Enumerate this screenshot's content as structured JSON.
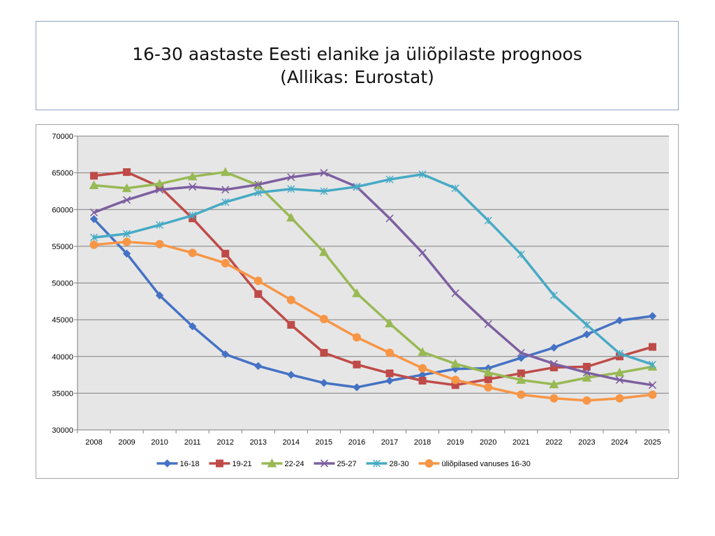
{
  "title_line1": "16-30 aastaste Eesti elanike ja üliõpilaste prognoos",
  "title_line2": "(Allikas: Eurostat)",
  "chart_data": {
    "type": "line",
    "categories": [
      "2008",
      "2009",
      "2010",
      "2011",
      "2012",
      "2013",
      "2014",
      "2015",
      "2016",
      "2017",
      "2018",
      "2019",
      "2020",
      "2021",
      "2022",
      "2023",
      "2024",
      "2025"
    ],
    "ylim": [
      30000,
      70000
    ],
    "yticks": [
      30000,
      35000,
      40000,
      45000,
      50000,
      55000,
      60000,
      65000,
      70000
    ],
    "grid": true,
    "legend_position": "bottom",
    "series": [
      {
        "name": "16-18",
        "color": "#4472c4",
        "marker": "diamond",
        "values": [
          58700,
          54000,
          48300,
          44100,
          40300,
          38700,
          37500,
          36400,
          35800,
          36700,
          37500,
          38300,
          38400,
          39800,
          41200,
          43000,
          44900,
          45500
        ]
      },
      {
        "name": "19-21",
        "color": "#be4b48",
        "marker": "square",
        "values": [
          64600,
          65100,
          63100,
          58800,
          54000,
          48500,
          44300,
          40500,
          38900,
          37700,
          36700,
          36100,
          36900,
          37700,
          38500,
          38600,
          40000,
          41300
        ]
      },
      {
        "name": "22-24",
        "color": "#98b954",
        "marker": "triangle",
        "values": [
          63300,
          62900,
          63500,
          64500,
          65100,
          63300,
          58900,
          54200,
          48600,
          44500,
          40600,
          39000,
          37800,
          36800,
          36200,
          37100,
          37800,
          38600
        ]
      },
      {
        "name": "25-27",
        "color": "#7d5fa0",
        "marker": "x",
        "values": [
          59600,
          61300,
          62700,
          63100,
          62700,
          63400,
          64400,
          65000,
          63100,
          58800,
          54100,
          48600,
          44400,
          40500,
          39000,
          37800,
          36800,
          36100
        ]
      },
      {
        "name": "28-30",
        "color": "#46aac5",
        "marker": "asterisk",
        "values": [
          56200,
          56700,
          57900,
          59200,
          61000,
          62300,
          62800,
          62500,
          63100,
          64100,
          64800,
          62900,
          58500,
          53900,
          48300,
          44300,
          40400,
          38900
        ]
      },
      {
        "name": "üliõpilased vanuses 16-30",
        "color": "#f79646",
        "marker": "circle",
        "values": [
          55200,
          55600,
          55300,
          54100,
          52700,
          50300,
          47700,
          45100,
          42600,
          40500,
          38400,
          36800,
          35800,
          34800,
          34300,
          34000,
          34300,
          34800
        ]
      }
    ]
  }
}
